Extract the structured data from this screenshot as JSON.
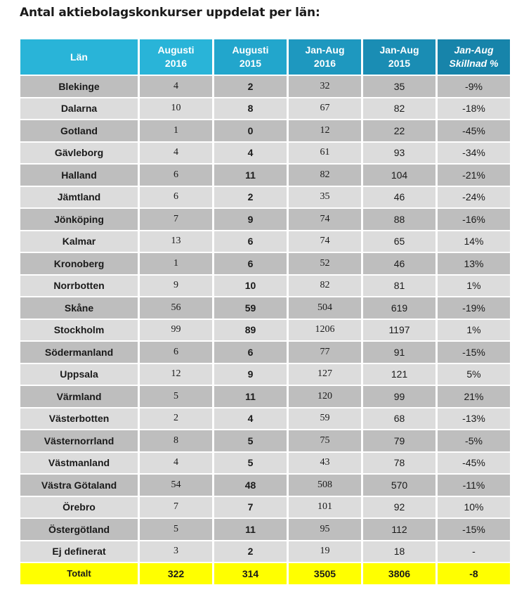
{
  "title": "Antal aktiebolagskonkurser uppdelat per län:",
  "headers": {
    "lan": "Län",
    "aug2016_line1": "Augusti",
    "aug2016_line2": "2016",
    "aug2015_line1": "Augusti",
    "aug2015_line2": "2015",
    "jan2016_line1": "Jan-Aug",
    "jan2016_line2": "2016",
    "jan2015_line1": "Jan-Aug",
    "jan2015_line2": "2015",
    "diff_line1": "Jan-Aug",
    "diff_line2": "Skillnad %"
  },
  "colors": {
    "header": "#29b4d8",
    "row_dark": "#bebebe",
    "row_light": "#dcdcdc",
    "total": "#ffff00",
    "negative": "#2f7a2f",
    "positive": "#a82424"
  },
  "rows": [
    {
      "lan": "Blekinge",
      "aug2016": "4",
      "aug2015": "2",
      "jan2016": "32",
      "jan2015": "35",
      "diff": "-9%",
      "trend": "neg"
    },
    {
      "lan": "Dalarna",
      "aug2016": "10",
      "aug2015": "8",
      "jan2016": "67",
      "jan2015": "82",
      "diff": "-18%",
      "trend": "neg"
    },
    {
      "lan": "Gotland",
      "aug2016": "1",
      "aug2015": "0",
      "jan2016": "12",
      "jan2015": "22",
      "diff": "-45%",
      "trend": "neg"
    },
    {
      "lan": "Gävleborg",
      "aug2016": "4",
      "aug2015": "4",
      "jan2016": "61",
      "jan2015": "93",
      "diff": "-34%",
      "trend": "neg"
    },
    {
      "lan": "Halland",
      "aug2016": "6",
      "aug2015": "11",
      "jan2016": "82",
      "jan2015": "104",
      "diff": "-21%",
      "trend": "neg"
    },
    {
      "lan": "Jämtland",
      "aug2016": "6",
      "aug2015": "2",
      "jan2016": "35",
      "jan2015": "46",
      "diff": "-24%",
      "trend": "neg"
    },
    {
      "lan": "Jönköping",
      "aug2016": "7",
      "aug2015": "9",
      "jan2016": "74",
      "jan2015": "88",
      "diff": "-16%",
      "trend": "neg"
    },
    {
      "lan": "Kalmar",
      "aug2016": "13",
      "aug2015": "6",
      "jan2016": "74",
      "jan2015": "65",
      "diff": "14%",
      "trend": "pos"
    },
    {
      "lan": "Kronoberg",
      "aug2016": "1",
      "aug2015": "6",
      "jan2016": "52",
      "jan2015": "46",
      "diff": "13%",
      "trend": "pos"
    },
    {
      "lan": "Norrbotten",
      "aug2016": "9",
      "aug2015": "10",
      "jan2016": "82",
      "jan2015": "81",
      "diff": "1%",
      "trend": "pos"
    },
    {
      "lan": "Skåne",
      "aug2016": "56",
      "aug2015": "59",
      "jan2016": "504",
      "jan2015": "619",
      "diff": "-19%",
      "trend": "neg"
    },
    {
      "lan": "Stockholm",
      "aug2016": "99",
      "aug2015": "89",
      "jan2016": "1206",
      "jan2015": "1197",
      "diff": "1%",
      "trend": "pos"
    },
    {
      "lan": "Södermanland",
      "aug2016": "6",
      "aug2015": "6",
      "jan2016": "77",
      "jan2015": "91",
      "diff": "-15%",
      "trend": "neg"
    },
    {
      "lan": "Uppsala",
      "aug2016": "12",
      "aug2015": "9",
      "jan2016": "127",
      "jan2015": "121",
      "diff": "5%",
      "trend": "pos"
    },
    {
      "lan": "Värmland",
      "aug2016": "5",
      "aug2015": "11",
      "jan2016": "120",
      "jan2015": "99",
      "diff": "21%",
      "trend": "pos"
    },
    {
      "lan": "Västerbotten",
      "aug2016": "2",
      "aug2015": "4",
      "jan2016": "59",
      "jan2015": "68",
      "diff": "-13%",
      "trend": "neg"
    },
    {
      "lan": "Västernorrland",
      "aug2016": "8",
      "aug2015": "5",
      "jan2016": "75",
      "jan2015": "79",
      "diff": "-5%",
      "trend": "neg"
    },
    {
      "lan": "Västmanland",
      "aug2016": "4",
      "aug2015": "5",
      "jan2016": "43",
      "jan2015": "78",
      "diff": "-45%",
      "trend": "neg"
    },
    {
      "lan": "Västra Götaland",
      "aug2016": "54",
      "aug2015": "48",
      "jan2016": "508",
      "jan2015": "570",
      "diff": "-11%",
      "trend": "neg"
    },
    {
      "lan": "Örebro",
      "aug2016": "7",
      "aug2015": "7",
      "jan2016": "101",
      "jan2015": "92",
      "diff": "10%",
      "trend": "pos"
    },
    {
      "lan": "Östergötland",
      "aug2016": "5",
      "aug2015": "11",
      "jan2016": "95",
      "jan2015": "112",
      "diff": "-15%",
      "trend": "neg"
    },
    {
      "lan": "Ej definerat",
      "aug2016": "3",
      "aug2015": "2",
      "jan2016": "19",
      "jan2015": "18",
      "diff": "-",
      "trend": "neutral"
    }
  ],
  "total": {
    "lan": "Totalt",
    "aug2016": "322",
    "aug2015": "314",
    "jan2016": "3505",
    "jan2015": "3806",
    "diff": "-8"
  }
}
